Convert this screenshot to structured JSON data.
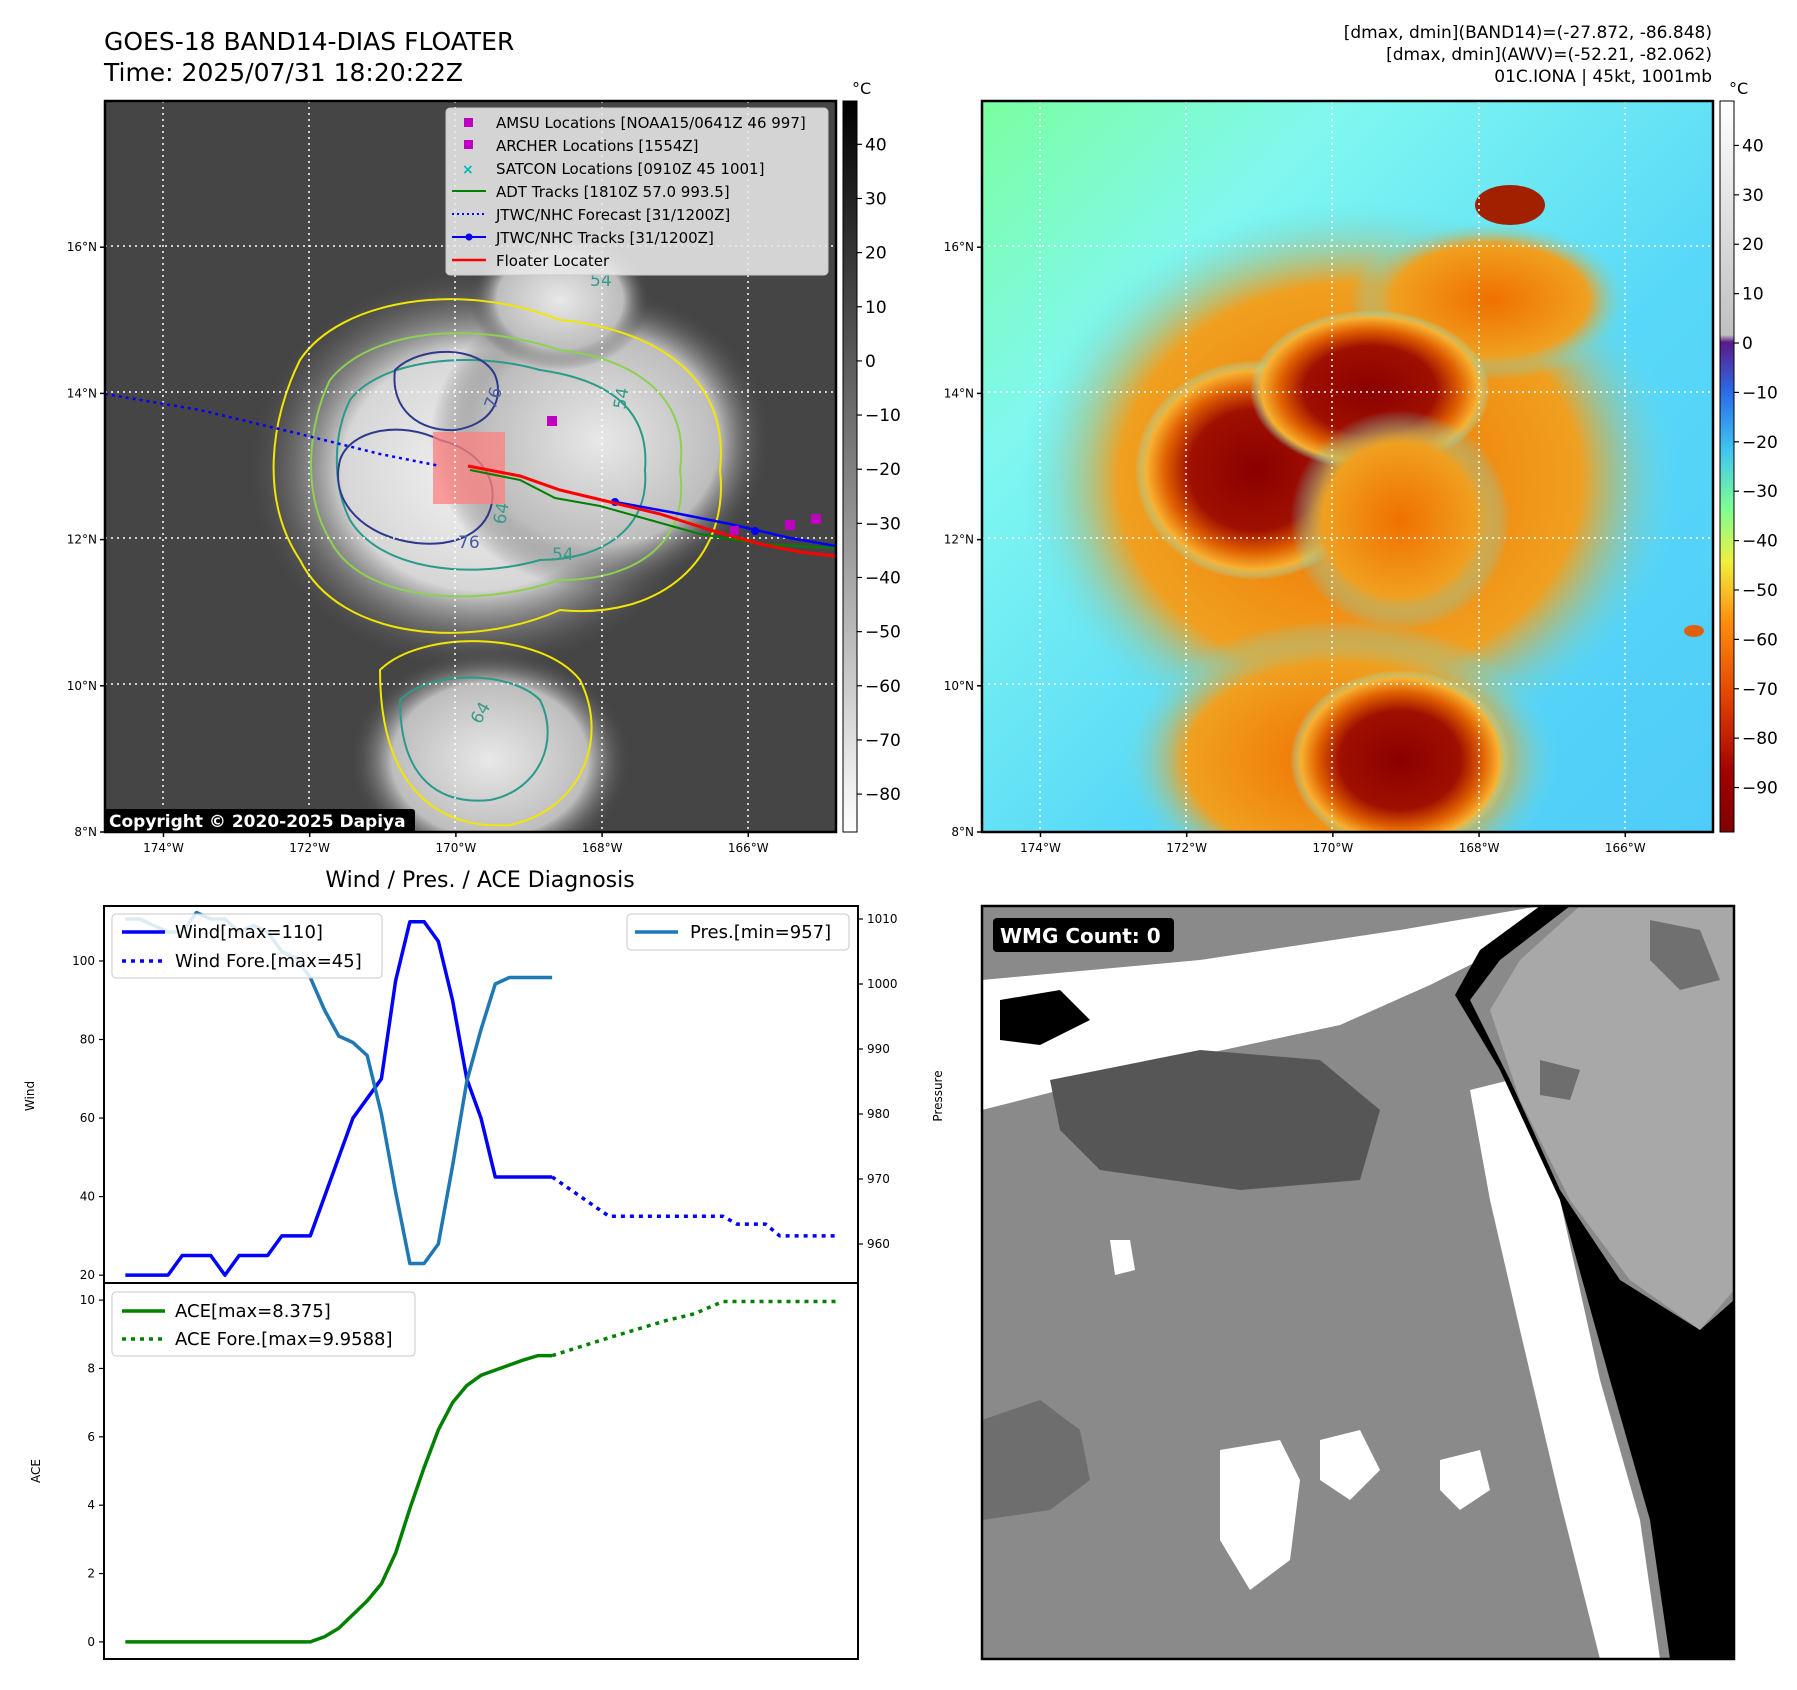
{
  "header": {
    "title": "GOES-18 BAND14-DIAS FLOATER",
    "time": "Time: 2025/07/31 18:20:22Z",
    "stats_band14": "[dmax, dmin](BAND14)=(-27.872, -86.848)",
    "stats_awv": "[dmax, dmin](AWV)=(-52.21, -82.062)",
    "storm": "01C.IONA | 45kt, 1001mb"
  },
  "map": {
    "lon_ticks": [
      "174°W",
      "172°W",
      "170°W",
      "168°W",
      "166°W"
    ],
    "lat_ticks": [
      "16°N",
      "14°N",
      "12°N",
      "10°N",
      "8°N"
    ],
    "lon_values": [
      -174,
      -172,
      -170,
      -168,
      -166
    ],
    "lat_values": [
      16,
      14,
      12,
      10,
      8
    ],
    "lon_range": [
      -174.8,
      -164.8
    ],
    "lat_range": [
      8,
      18
    ],
    "copyright": "Copyright © 2020-2025 Dapiya",
    "contour_labels": [
      "76",
      "76",
      "54",
      "54",
      "64",
      "64",
      "54"
    ],
    "colors": {
      "magenta": "#c000c0",
      "cyan": "#00b8b8",
      "adt": "#008000",
      "forecast": "#0000ff",
      "track": "#0000ff",
      "locater": "#ff0000",
      "box": "#ff8080"
    }
  },
  "legend": [
    {
      "label": "AMSU Locations [NOAA15/0641Z 46 997]",
      "icon": "magenta-square-icon"
    },
    {
      "label": "ARCHER Locations [1554Z]",
      "icon": "magenta-square-icon"
    },
    {
      "label": "SATCON Locations [0910Z 45 1001]",
      "icon": "cyan-x-icon"
    },
    {
      "label": "ADT Tracks [1810Z 57.0 993.5]",
      "icon": "green-line-icon"
    },
    {
      "label": "JTWC/NHC Forecast [31/1200Z]",
      "icon": "blue-dotted-line-icon"
    },
    {
      "label": "JTWC/NHC Tracks [31/1200Z]",
      "icon": "blue-line-dot-icon"
    },
    {
      "label": "Floater Locater",
      "icon": "red-line-icon"
    }
  ],
  "colorbar_gray": {
    "unit": "°C",
    "ticks": [
      "40",
      "30",
      "20",
      "10",
      "0",
      "−10",
      "−20",
      "−30",
      "−40",
      "−50",
      "−60",
      "−70",
      "−80"
    ],
    "values": [
      40,
      30,
      20,
      10,
      0,
      -10,
      -20,
      -30,
      -40,
      -50,
      -60,
      -70,
      -80
    ],
    "range": [
      -87,
      48
    ]
  },
  "colorbar_color": {
    "unit": "°C",
    "ticks": [
      "40",
      "30",
      "20",
      "10",
      "0",
      "−10",
      "−20",
      "−30",
      "−40",
      "−50",
      "−60",
      "−70",
      "−80",
      "−90"
    ],
    "values": [
      40,
      30,
      20,
      10,
      0,
      -10,
      -20,
      -30,
      -40,
      -50,
      -60,
      -70,
      -80,
      -90
    ],
    "range": [
      -99,
      49
    ]
  },
  "wmg": {
    "label": "WMG Count: 0"
  },
  "chart_data": [
    {
      "type": "line",
      "title": "Wind / Pres. / ACE Diagnosis",
      "xlabel": "",
      "ylabel": "Wind",
      "ylabel2": "Pressure",
      "ylim": [
        18,
        114
      ],
      "ylim2": [
        954,
        1012
      ],
      "yticks": [
        20,
        40,
        60,
        80,
        100
      ],
      "yticks2": [
        960,
        970,
        980,
        990,
        1000,
        1010
      ],
      "x_steps": 50,
      "series": [
        {
          "name": "Wind[max=110]",
          "style": "solid",
          "color": "#0000ff",
          "x": [
            0,
            1,
            2,
            3,
            4,
            5,
            6,
            7,
            8,
            9,
            10,
            11,
            12,
            13,
            14,
            15,
            16,
            17,
            18,
            19,
            20,
            21,
            22,
            23,
            24,
            25,
            26,
            27,
            28,
            29,
            30
          ],
          "values": [
            20,
            20,
            20,
            20,
            25,
            25,
            25,
            20,
            25,
            25,
            25,
            30,
            30,
            30,
            40,
            50,
            60,
            65,
            70,
            95,
            110,
            110,
            105,
            90,
            70,
            60,
            45,
            45,
            45,
            45,
            45
          ]
        },
        {
          "name": "Wind Fore.[max=45]",
          "style": "dotted",
          "color": "#0000ff",
          "x": [
            30,
            32,
            34,
            36,
            38,
            40,
            42,
            43,
            45,
            46,
            48,
            50
          ],
          "values": [
            45,
            40,
            35,
            35,
            35,
            35,
            35,
            33,
            33,
            30,
            30,
            30
          ]
        },
        {
          "name": "Pres.[min=957]",
          "style": "solid",
          "color": "#1f77b4",
          "axis": "right",
          "x": [
            0,
            1,
            2,
            3,
            4,
            5,
            6,
            7,
            8,
            9,
            10,
            11,
            12,
            13,
            14,
            15,
            16,
            17,
            18,
            19,
            20,
            21,
            22,
            23,
            24,
            25,
            26,
            27,
            28,
            29,
            30
          ],
          "values": [
            1010,
            1010,
            1009,
            1008,
            1008,
            1011,
            1010,
            1010,
            1008,
            1009,
            1008,
            1005,
            1004,
            1001,
            996,
            992,
            991,
            989,
            980,
            968,
            957,
            957,
            960,
            972,
            985,
            993,
            1000,
            1001,
            1001,
            1001,
            1001
          ]
        }
      ]
    },
    {
      "type": "line",
      "xlabel": "",
      "ylabel": "ACE",
      "ylim": [
        -0.5,
        10.5
      ],
      "yticks": [
        0,
        2,
        4,
        6,
        8,
        10
      ],
      "x_steps": 50,
      "series": [
        {
          "name": "ACE[max=8.375]",
          "style": "solid",
          "color": "#008000",
          "x": [
            0,
            13,
            14,
            15,
            16,
            17,
            18,
            19,
            20,
            21,
            22,
            23,
            24,
            25,
            26,
            27,
            28,
            29,
            30
          ],
          "values": [
            0,
            0,
            0.15,
            0.4,
            0.8,
            1.2,
            1.7,
            2.6,
            3.9,
            5.1,
            6.2,
            7.0,
            7.5,
            7.8,
            7.95,
            8.1,
            8.25,
            8.375,
            8.375
          ]
        },
        {
          "name": "ACE Fore.[max=9.9588]",
          "style": "dotted",
          "color": "#008000",
          "x": [
            30,
            34,
            38,
            40,
            42,
            46,
            50
          ],
          "values": [
            8.375,
            8.9,
            9.4,
            9.6,
            9.9588,
            9.9588,
            9.9588
          ]
        }
      ]
    }
  ]
}
